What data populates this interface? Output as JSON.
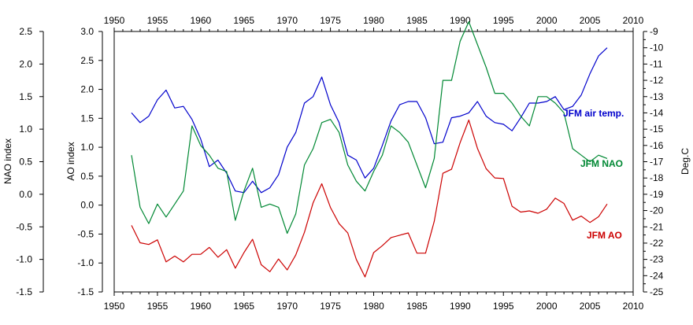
{
  "chart_data": {
    "type": "line",
    "title": "",
    "xlim": [
      1950,
      2010
    ],
    "x_ticks": [
      "1950",
      "1955",
      "1960",
      "1965",
      "1970",
      "1975",
      "1980",
      "1985",
      "1990",
      "1995",
      "2000",
      "2005",
      "2010"
    ],
    "axes": {
      "ao": {
        "label": "AO index",
        "ylim": [
          -1.5,
          3.0
        ],
        "ticks": [
          "3.0",
          "2.5",
          "2.0",
          "1.5",
          "1.0",
          "0.5",
          "0.0",
          "-0.5",
          "-1.0",
          "-1.5"
        ]
      },
      "nao": {
        "label": "NAO index",
        "ylim": [
          -1.5,
          2.5
        ],
        "ticks": [
          "2.5",
          "2.0",
          "1.5",
          "1.0",
          "0.5",
          "0.0",
          "-0.5",
          "-1.0",
          "-1.5"
        ]
      },
      "temp": {
        "label": "Deg.C",
        "ylim": [
          -25,
          -9
        ],
        "ticks": [
          "-9",
          "-10",
          "-11",
          "-12",
          "-13",
          "-14",
          "-15",
          "-16",
          "-17",
          "-18",
          "-19",
          "-20",
          "-21",
          "-22",
          "-23",
          "-24",
          "-25"
        ]
      }
    },
    "grid": false,
    "series": [
      {
        "name": "JFM air temp.",
        "axis": "temp",
        "color": "#0000cc",
        "x": [
          1952,
          1953,
          1954,
          1955,
          1956,
          1957,
          1958,
          1959,
          1960,
          1961,
          1962,
          1963,
          1964,
          1965,
          1966,
          1967,
          1968,
          1969,
          1970,
          1971,
          1972,
          1973,
          1974,
          1975,
          1976,
          1977,
          1978,
          1979,
          1980,
          1981,
          1982,
          1983,
          1984,
          1985,
          1986,
          1987,
          1988,
          1989,
          1990,
          1991,
          1992,
          1993,
          1994,
          1995,
          1996,
          1997,
          1998,
          1999,
          2000,
          2001,
          2002,
          2003,
          2004,
          2005,
          2006,
          2007
        ],
        "values": [
          -14.0,
          -14.6,
          -14.2,
          -13.2,
          -12.6,
          -13.7,
          -13.6,
          -14.4,
          -15.6,
          -17.3,
          -16.9,
          -17.7,
          -18.8,
          -18.9,
          -18.2,
          -18.9,
          -18.6,
          -17.8,
          -16.1,
          -15.2,
          -13.4,
          -13.0,
          -11.8,
          -13.5,
          -14.6,
          -16.6,
          -16.9,
          -18.0,
          -17.4,
          -16.0,
          -14.5,
          -13.5,
          -13.3,
          -13.3,
          -14.3,
          -15.9,
          -15.8,
          -14.3,
          -14.2,
          -14.0,
          -13.3,
          -14.2,
          -14.6,
          -14.7,
          -15.1,
          -14.3,
          -13.4,
          -13.4,
          -13.3,
          -13.0,
          -13.8,
          -13.6,
          -12.9,
          -11.6,
          -10.5,
          -10.0
        ]
      },
      {
        "name": "JFM NAO",
        "axis": "nao",
        "color": "#008833",
        "x": [
          1952,
          1953,
          1954,
          1955,
          1956,
          1957,
          1958,
          1959,
          1960,
          1961,
          1962,
          1963,
          1964,
          1965,
          1966,
          1967,
          1968,
          1969,
          1970,
          1971,
          1972,
          1973,
          1974,
          1975,
          1976,
          1977,
          1978,
          1979,
          1980,
          1981,
          1982,
          1983,
          1984,
          1985,
          1986,
          1987,
          1988,
          1989,
          1990,
          1991,
          1992,
          1993,
          1994,
          1995,
          1996,
          1997,
          1998,
          1999,
          2000,
          2001,
          2002,
          2003,
          2004,
          2005,
          2006,
          2007
        ],
        "values": [
          0.6,
          -0.2,
          -0.45,
          -0.15,
          -0.35,
          -0.15,
          0.05,
          1.05,
          0.75,
          0.6,
          0.4,
          0.35,
          -0.4,
          0.05,
          0.4,
          -0.2,
          -0.15,
          -0.2,
          -0.6,
          -0.3,
          0.45,
          0.7,
          1.1,
          1.15,
          0.95,
          0.45,
          0.2,
          0.05,
          0.35,
          0.6,
          1.05,
          0.95,
          0.8,
          0.45,
          0.1,
          0.55,
          1.75,
          1.75,
          2.35,
          2.65,
          2.3,
          1.95,
          1.55,
          1.55,
          1.4,
          1.2,
          1.05,
          1.5,
          1.5,
          1.4,
          1.25,
          0.7,
          0.6,
          0.5,
          0.6,
          0.55
        ]
      },
      {
        "name": "JFM AO",
        "axis": "ao",
        "color": "#cc0000",
        "x": [
          1952,
          1953,
          1954,
          1955,
          1956,
          1957,
          1958,
          1959,
          1960,
          1961,
          1962,
          1963,
          1964,
          1965,
          1966,
          1967,
          1968,
          1969,
          1970,
          1971,
          1972,
          1973,
          1974,
          1975,
          1976,
          1977,
          1978,
          1979,
          1980,
          1981,
          1982,
          1983,
          1984,
          1985,
          1986,
          1987,
          1988,
          1989,
          1990,
          1991,
          1992,
          1993,
          1994,
          1995,
          1996,
          1997,
          1998,
          1999,
          2000,
          2001,
          2002,
          2003,
          2004,
          2005,
          2006,
          2007
        ],
        "values": [
          -0.35,
          -0.65,
          -0.68,
          -0.6,
          -0.98,
          -0.88,
          -0.98,
          -0.85,
          -0.85,
          -0.73,
          -0.9,
          -0.77,
          -1.09,
          -0.82,
          -0.59,
          -1.03,
          -1.15,
          -0.93,
          -1.12,
          -0.86,
          -0.47,
          0.04,
          0.37,
          -0.04,
          -0.32,
          -0.48,
          -0.94,
          -1.24,
          -0.82,
          -0.7,
          -0.56,
          -0.52,
          -0.48,
          -0.83,
          -0.83,
          -0.28,
          0.55,
          0.62,
          1.08,
          1.47,
          0.98,
          0.63,
          0.47,
          0.46,
          -0.02,
          -0.12,
          -0.1,
          -0.14,
          -0.07,
          0.12,
          0.03,
          -0.26,
          -0.19,
          -0.3,
          -0.2,
          0.02
        ]
      }
    ]
  }
}
